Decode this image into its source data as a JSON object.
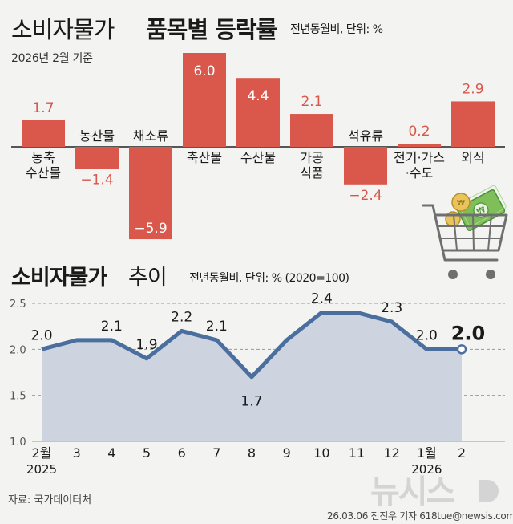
{
  "header": {
    "title_regular": "소비자물가",
    "title_bold": "품목별 등락률",
    "unit": "전년동월비, 단위: %",
    "basis": "2026년 2월 기준"
  },
  "trend_header": {
    "title_bold": "소비자물가",
    "title_regular": "추이",
    "unit": "전년동월비, 단위: % (2020=100)"
  },
  "footer": {
    "source": "자료: 국가데이터처",
    "credit": "26.03.06 전진우 기자 618tue@newsis.com",
    "logo_text": "뉴시스"
  },
  "colors": {
    "bar": "#d9574b",
    "bar_label_text": "#d9574b",
    "line": "#4a6e9e",
    "area": "#cdd4df",
    "grid": "#999999"
  },
  "icons": [
    "shopping-cart-icon",
    "money-bill-icon",
    "coin-icon"
  ],
  "chart_data": [
    {
      "type": "bar",
      "categories": [
        "농축\n수산물",
        "농산물",
        "채소류",
        "축산물",
        "수산물",
        "가공\n식품",
        "석유류",
        "전기·가스\n·수도",
        "외식"
      ],
      "values": [
        1.7,
        -1.4,
        -5.9,
        6.0,
        4.4,
        2.1,
        -2.4,
        0.2,
        2.9
      ],
      "value_labels": [
        "1.7",
        "−1.4",
        "−5.9",
        "6.0",
        "4.4",
        "2.1",
        "−2.4",
        "0.2",
        "2.9"
      ],
      "ylim": [
        -5.9,
        6.0
      ]
    },
    {
      "type": "area",
      "x_labels": [
        "2월",
        "3",
        "4",
        "5",
        "6",
        "7",
        "8",
        "9",
        "10",
        "11",
        "12",
        "1월",
        "2"
      ],
      "year_labels": [
        {
          "index": 0,
          "text": "2025"
        },
        {
          "index": 11,
          "text": "2026"
        }
      ],
      "values": [
        2.0,
        2.1,
        2.1,
        1.9,
        2.2,
        2.1,
        1.7,
        2.1,
        2.4,
        2.4,
        2.3,
        2.0,
        2.0
      ],
      "point_labels": [
        "2.0",
        "",
        "2.1",
        "1.9",
        "2.2",
        "2.1",
        "1.7",
        "",
        "2.4",
        "",
        "2.3",
        "2.0",
        "2.0"
      ],
      "y_ticks": [
        "2.5",
        "2.0",
        "1.5",
        "1.0"
      ],
      "ylim": [
        1.0,
        2.5
      ],
      "grid": true
    }
  ]
}
